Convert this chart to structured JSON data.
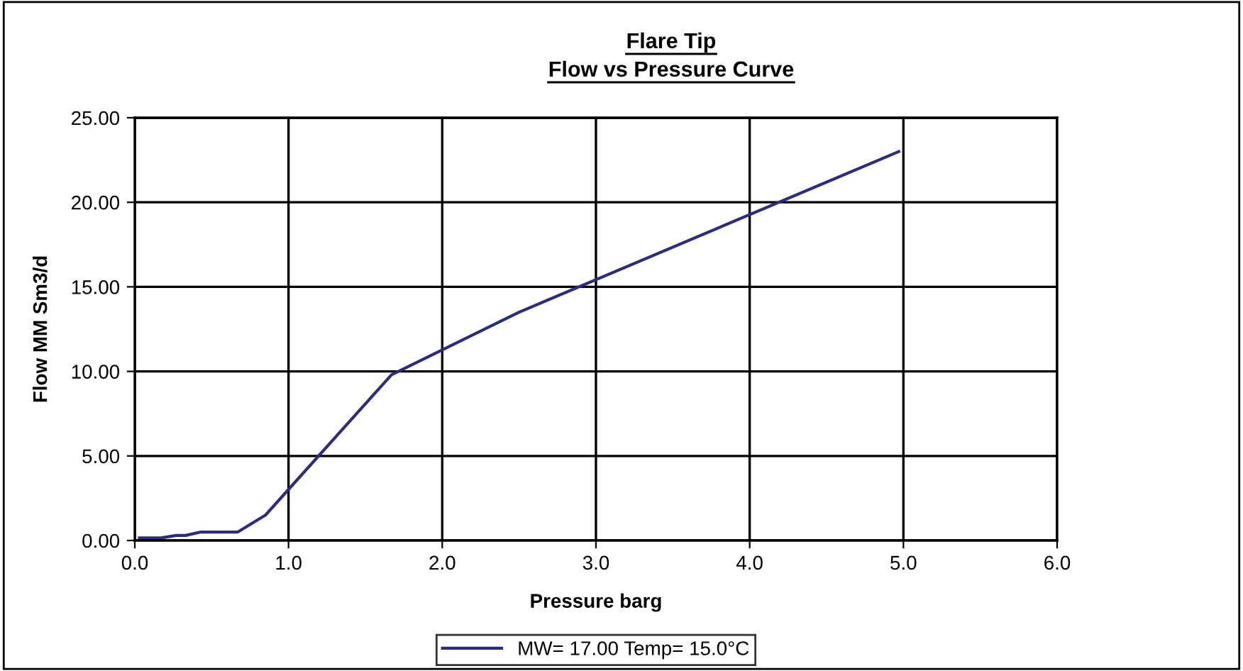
{
  "chart_data": {
    "type": "line",
    "title": "Flare Tip\nFlow vs Pressure Curve",
    "xlabel": "Pressure barg",
    "ylabel": "Flow MM Sm3/d",
    "series": [
      {
        "name": "MW= 17.00 Temp= 15.0°C",
        "color": "#2b2b7f",
        "x": [
          0.03,
          0.17,
          0.27,
          0.33,
          0.43,
          0.67,
          0.85,
          1.67,
          2.5,
          4.97
        ],
        "values": [
          0.15,
          0.15,
          0.3,
          0.3,
          0.5,
          0.5,
          1.5,
          9.8,
          13.5,
          23.0
        ]
      }
    ],
    "xlim": [
      0,
      6
    ],
    "xticks": [
      {
        "value": 0,
        "label": "0.0"
      },
      {
        "value": 1,
        "label": "1.0"
      },
      {
        "value": 2,
        "label": "2.0"
      },
      {
        "value": 3,
        "label": "3.0"
      },
      {
        "value": 4,
        "label": "4.0"
      },
      {
        "value": 5,
        "label": "5.0"
      },
      {
        "value": 6,
        "label": "6.0"
      }
    ],
    "ylim": [
      0,
      25
    ],
    "yticks": [
      {
        "value": 0,
        "label": "0.00"
      },
      {
        "value": 5,
        "label": "5.00"
      },
      {
        "value": 10,
        "label": "10.00"
      },
      {
        "value": 15,
        "label": "15.00"
      },
      {
        "value": 20,
        "label": "20.00"
      },
      {
        "value": 25,
        "label": "25.00"
      }
    ],
    "grid": true,
    "legend": "bottom",
    "marker": "none",
    "line_style": "solid"
  }
}
